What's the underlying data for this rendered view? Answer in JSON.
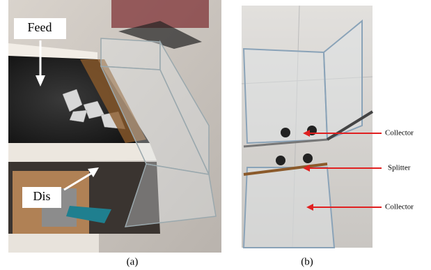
{
  "panels": [
    {
      "label": "(a)",
      "annotations": [
        "Feed",
        "Dis"
      ]
    },
    {
      "label": "(b)",
      "annotations": [
        "Collector",
        "Splitter",
        "Collector"
      ]
    }
  ]
}
